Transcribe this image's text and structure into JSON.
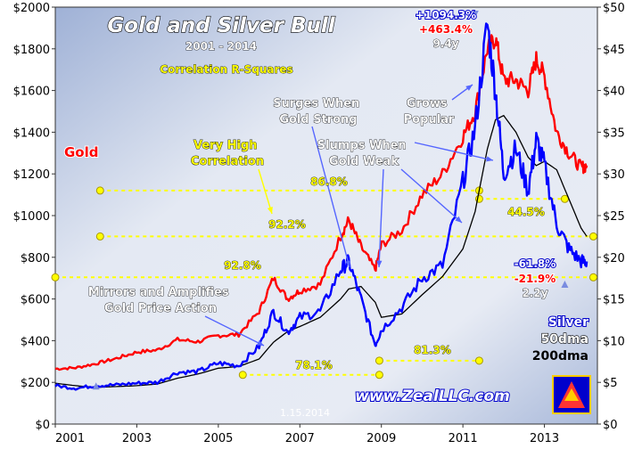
{
  "chart_data": {
    "type": "line",
    "title": "Gold and Silver Bull",
    "subtitle": "2001 - 2014",
    "x": [
      2001.0,
      2001.5,
      2002.0,
      2002.5,
      2003.0,
      2003.5,
      2004.0,
      2004.5,
      2005.0,
      2005.5,
      2006.0,
      2006.35,
      2006.7,
      2007.0,
      2007.5,
      2008.0,
      2008.2,
      2008.5,
      2008.85,
      2009.0,
      2009.5,
      2010.0,
      2010.5,
      2011.0,
      2011.3,
      2011.6,
      2011.8,
      2012.0,
      2012.3,
      2012.6,
      2012.8,
      2013.0,
      2013.3,
      2013.6,
      2013.9,
      2014.04
    ],
    "series": [
      {
        "name": "Gold",
        "color": "#ff0000",
        "values": [
          265,
          270,
          290,
          315,
          345,
          355,
          405,
          395,
          425,
          430,
          540,
          700,
          600,
          640,
          670,
          900,
          980,
          850,
          740,
          860,
          930,
          1100,
          1200,
          1380,
          1500,
          1800,
          1850,
          1650,
          1650,
          1600,
          1750,
          1670,
          1400,
          1300,
          1230,
          1240
        ]
      },
      {
        "name": "Silver",
        "color": "#0000ff",
        "values": [
          4.6,
          4.3,
          4.6,
          4.7,
          4.9,
          5.0,
          6.2,
          6.3,
          7.3,
          7.0,
          9.3,
          13.5,
          11.0,
          12.8,
          13.5,
          18.5,
          19.5,
          15.0,
          9.5,
          11.3,
          14.0,
          17.5,
          19.0,
          29.0,
          35.5,
          48.0,
          40.0,
          30.0,
          33.0,
          28.0,
          34.0,
          31.0,
          24.0,
          21.0,
          19.5,
          19.5
        ]
      },
      {
        "name": "200dma",
        "color": "#000000",
        "values": [
          4.9,
          4.6,
          4.4,
          4.5,
          4.6,
          4.8,
          5.5,
          6.0,
          6.7,
          6.9,
          7.8,
          9.8,
          11.1,
          11.7,
          12.8,
          15.0,
          16.2,
          16.5,
          14.6,
          12.8,
          13.2,
          15.5,
          17.7,
          21.0,
          25.5,
          33.0,
          36.5,
          37.0,
          35.0,
          32.0,
          31.0,
          31.5,
          30.5,
          27.0,
          23.5,
          22.5
        ]
      }
    ],
    "left_axis": {
      "label": "Gold",
      "ylim": [
        0,
        2000
      ],
      "ticks": [
        "$0",
        "$200",
        "$400",
        "$600",
        "$800",
        "$1000",
        "$1200",
        "$1400",
        "$1600",
        "$1800",
        "$2000"
      ]
    },
    "right_axis": {
      "label": "Silver",
      "ylim": [
        0,
        50
      ],
      "ticks": [
        "$0",
        "$5",
        "$10",
        "$15",
        "$20",
        "$25",
        "$30",
        "$35",
        "$40",
        "$45",
        "$50"
      ]
    },
    "xlim": [
      2001,
      2014.3
    ],
    "x_ticks": [
      "2001",
      "2003",
      "2005",
      "2007",
      "2009",
      "2011",
      "2013"
    ],
    "grid": false,
    "annotations": {
      "correlation_title": "Correlation R-Squares",
      "gold_label": "Gold",
      "very_high_correlation": "Very High Correlation",
      "r_92_2": "92.2%",
      "r_92_8": "92.8%",
      "r_86_8": "86.8%",
      "r_78_1": "78.1%",
      "r_81_3": "81.3%",
      "r_44_5": "44.5%",
      "mirrors": "Mirrors and Amplifies Gold Price Action",
      "surges": "Surges When Gold Strong",
      "slumps": "Slumps When Gold Weak",
      "grows": "Grows Popular",
      "peak_silver_gain": "+1094.3%",
      "peak_gold_gain": "+463.4%",
      "peak_years": "9.4y",
      "silver_drop": "-61.8%",
      "gold_drop": "-21.9%",
      "drop_years": "2.2y",
      "legend_silver": "Silver",
      "legend_50dma": "50dma",
      "legend_200dma": "200dma",
      "date_stamp": "1.15.2014",
      "website": "www.ZealLLC.com"
    }
  }
}
